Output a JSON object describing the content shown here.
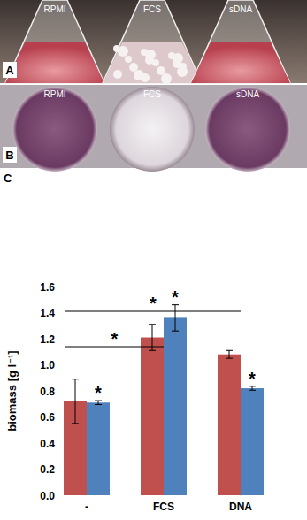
{
  "panels": [
    {
      "label": "A",
      "captions": [
        "RPMI",
        "FCS",
        "sDNA"
      ]
    },
    {
      "label": "B",
      "captions": [
        "RPMI",
        "FCS",
        "sDNA"
      ]
    }
  ],
  "chart_data": {
    "type": "bar",
    "panel_label": "C",
    "y_label": "biomass [g l⁻¹]",
    "categories": [
      "-",
      "FCS",
      "DNA"
    ],
    "series": [
      {
        "color": "#c0504d",
        "values": [
          0.72,
          1.21,
          1.08
        ],
        "errors": [
          0.17,
          0.1,
          0.03
        ]
      },
      {
        "color": "#4f81bd",
        "values": [
          0.71,
          1.36,
          0.82
        ],
        "errors": [
          0.015,
          0.1,
          0.015
        ]
      }
    ],
    "ylim": [
      0,
      1.6
    ],
    "yticks": [
      {
        "value": 0,
        "label": "0.0"
      },
      {
        "value": 0.2,
        "label": "0.2"
      },
      {
        "value": 0.4,
        "label": "0.4"
      },
      {
        "value": 0.6,
        "label": "0.6"
      },
      {
        "value": 0.8,
        "label": "0.8"
      },
      {
        "value": 1.0,
        "label": "1.0"
      },
      {
        "value": 1.2,
        "label": "1.2"
      },
      {
        "value": 1.4,
        "label": "1.4"
      },
      {
        "value": 1.6,
        "label": "1.6"
      }
    ],
    "grid": false,
    "annotations": [
      {
        "text": "*",
        "series": 1,
        "category": 0
      },
      {
        "text": "*",
        "series": 1,
        "category": 1
      },
      {
        "text": "*",
        "series": 1,
        "category": 2
      }
    ],
    "significance": [
      {
        "from": 0,
        "to": 1,
        "text": "*"
      },
      {
        "from": 0,
        "to": 2,
        "text": "*"
      }
    ]
  }
}
